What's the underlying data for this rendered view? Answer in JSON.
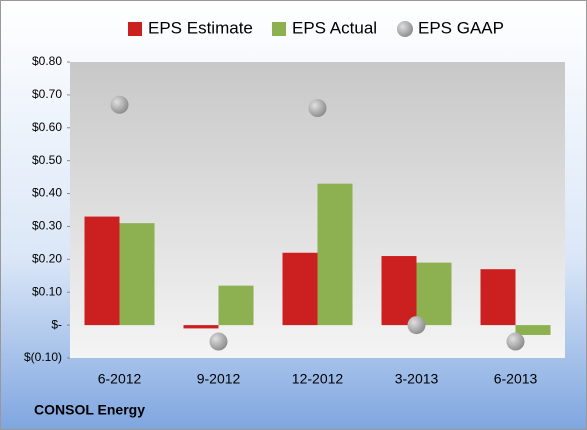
{
  "chart_data": {
    "type": "bar",
    "footer": "CONSOL Energy",
    "categories": [
      "6-2012",
      "9-2012",
      "12-2012",
      "3-2013",
      "6-2013"
    ],
    "series": [
      {
        "name": "EPS Estimate",
        "color": "#cc1f1f",
        "mark": "bar",
        "values": [
          0.33,
          -0.01,
          0.22,
          0.21,
          0.17
        ]
      },
      {
        "name": "EPS Actual",
        "color": "#8db050",
        "mark": "bar",
        "values": [
          0.31,
          0.12,
          0.43,
          0.19,
          -0.03
        ]
      },
      {
        "name": "EPS GAAP",
        "color": "#a9a9a9",
        "mark": "dot",
        "values": [
          0.67,
          -0.05,
          0.66,
          0.0,
          -0.05
        ]
      }
    ],
    "ylim": [
      -0.1,
      0.8
    ],
    "yticks": [
      {
        "value": -0.1,
        "label": "$(0.10)"
      },
      {
        "value": 0,
        "label": "$-"
      },
      {
        "value": 0.1,
        "label": "$0.10"
      },
      {
        "value": 0.2,
        "label": "$0.20"
      },
      {
        "value": 0.3,
        "label": "$0.30"
      },
      {
        "value": 0.4,
        "label": "$0.40"
      },
      {
        "value": 0.5,
        "label": "$0.50"
      },
      {
        "value": 0.6,
        "label": "$0.60"
      },
      {
        "value": 0.7,
        "label": "$0.70"
      },
      {
        "value": 0.8,
        "label": "$0.80"
      }
    ],
    "grid": false
  }
}
